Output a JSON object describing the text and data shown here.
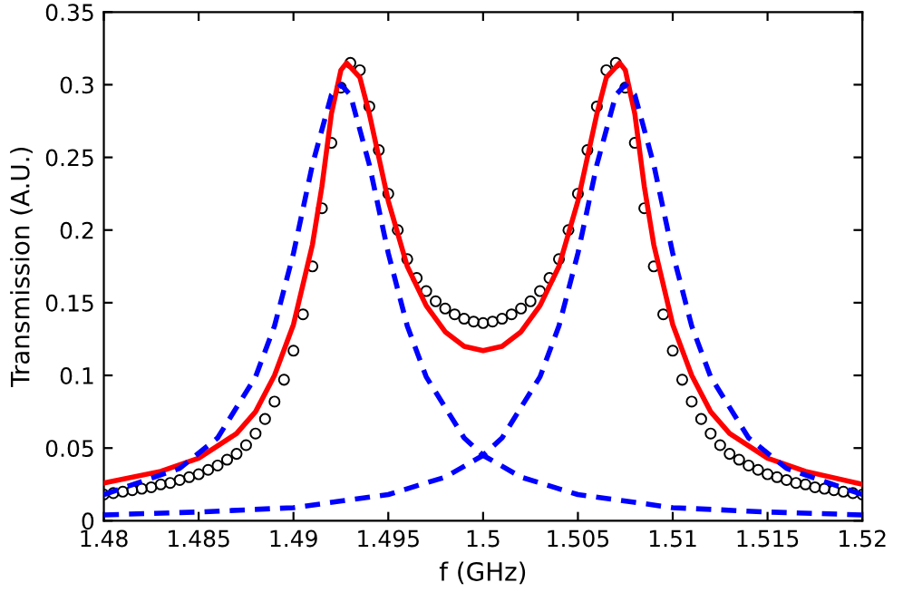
{
  "chart_data": {
    "type": "line",
    "xlabel": "f (GHz)",
    "ylabel": "Transmission (A.U.)",
    "xlim": [
      1.48,
      1.52
    ],
    "ylim": [
      0,
      0.35
    ],
    "xticks": [
      1.48,
      1.485,
      1.49,
      1.495,
      1.5,
      1.505,
      1.51,
      1.515,
      1.52
    ],
    "yticks": [
      0,
      0.05,
      0.1,
      0.15,
      0.2,
      0.25,
      0.3,
      0.35
    ],
    "grid": false,
    "series": [
      {
        "type": "scatter",
        "color": "#000000",
        "marker": "circle",
        "x": [
          1.48,
          1.4805,
          1.481,
          1.4815,
          1.482,
          1.4825,
          1.483,
          1.4835,
          1.484,
          1.4845,
          1.485,
          1.4855,
          1.486,
          1.4865,
          1.487,
          1.4875,
          1.488,
          1.4885,
          1.489,
          1.4895,
          1.49,
          1.4905,
          1.491,
          1.4915,
          1.492,
          1.4925,
          1.493,
          1.4935,
          1.494,
          1.4945,
          1.495,
          1.4955,
          1.496,
          1.4965,
          1.497,
          1.4975,
          1.498,
          1.4985,
          1.499,
          1.4995,
          1.5,
          1.5005,
          1.501,
          1.5015,
          1.502,
          1.5025,
          1.503,
          1.5035,
          1.504,
          1.5045,
          1.505,
          1.5055,
          1.506,
          1.5065,
          1.507,
          1.5075,
          1.508,
          1.5085,
          1.509,
          1.5095,
          1.51,
          1.5105,
          1.511,
          1.5115,
          1.512,
          1.5125,
          1.513,
          1.5135,
          1.514,
          1.5145,
          1.515,
          1.5155,
          1.516,
          1.5165,
          1.517,
          1.5175,
          1.518,
          1.5185,
          1.519,
          1.5195,
          1.52
        ],
        "values": [
          0.018,
          0.019,
          0.02,
          0.021,
          0.022,
          0.023,
          0.025,
          0.026,
          0.028,
          0.03,
          0.032,
          0.035,
          0.038,
          0.042,
          0.046,
          0.052,
          0.06,
          0.07,
          0.082,
          0.097,
          0.117,
          0.142,
          0.175,
          0.215,
          0.26,
          0.298,
          0.315,
          0.31,
          0.285,
          0.255,
          0.225,
          0.2,
          0.18,
          0.167,
          0.158,
          0.151,
          0.146,
          0.142,
          0.139,
          0.137,
          0.136,
          0.137,
          0.139,
          0.142,
          0.146,
          0.151,
          0.158,
          0.167,
          0.18,
          0.2,
          0.225,
          0.255,
          0.285,
          0.31,
          0.315,
          0.298,
          0.26,
          0.215,
          0.175,
          0.142,
          0.117,
          0.097,
          0.082,
          0.07,
          0.06,
          0.052,
          0.046,
          0.042,
          0.038,
          0.035,
          0.032,
          0.03,
          0.028,
          0.026,
          0.025,
          0.023,
          0.022,
          0.021,
          0.02,
          0.019,
          0.018
        ]
      },
      {
        "color": "#ff0000",
        "line_style": "solid",
        "x": [
          1.48,
          1.483,
          1.485,
          1.487,
          1.488,
          1.489,
          1.49,
          1.491,
          1.4915,
          1.492,
          1.4925,
          1.4928,
          1.4935,
          1.494,
          1.495,
          1.496,
          1.497,
          1.498,
          1.499,
          1.5,
          1.501,
          1.502,
          1.503,
          1.504,
          1.505,
          1.506,
          1.5065,
          1.5072,
          1.5075,
          1.508,
          1.5085,
          1.509,
          1.51,
          1.511,
          1.512,
          1.513,
          1.515,
          1.517,
          1.52
        ],
        "values": [
          0.026,
          0.034,
          0.043,
          0.06,
          0.075,
          0.1,
          0.135,
          0.19,
          0.23,
          0.28,
          0.31,
          0.315,
          0.305,
          0.28,
          0.22,
          0.175,
          0.148,
          0.13,
          0.12,
          0.117,
          0.12,
          0.13,
          0.148,
          0.175,
          0.22,
          0.28,
          0.305,
          0.315,
          0.31,
          0.28,
          0.23,
          0.19,
          0.135,
          0.1,
          0.075,
          0.06,
          0.043,
          0.034,
          0.025
        ]
      },
      {
        "color": "#0000ff",
        "line_style": "dashed",
        "x": [
          1.48,
          1.484,
          1.486,
          1.488,
          1.489,
          1.49,
          1.491,
          1.492,
          1.4925,
          1.493,
          1.494,
          1.495,
          1.496,
          1.497,
          1.499,
          1.5,
          1.502,
          1.505,
          1.51,
          1.515,
          1.52
        ],
        "values": [
          0.018,
          0.036,
          0.057,
          0.099,
          0.134,
          0.184,
          0.245,
          0.293,
          0.3,
          0.293,
          0.245,
          0.184,
          0.134,
          0.099,
          0.057,
          0.045,
          0.03,
          0.018,
          0.009,
          0.006,
          0.004
        ]
      },
      {
        "color": "#0000ff",
        "line_style": "dashed",
        "x": [
          1.48,
          1.485,
          1.49,
          1.495,
          1.498,
          1.5,
          1.501,
          1.503,
          1.504,
          1.505,
          1.506,
          1.507,
          1.5075,
          1.508,
          1.509,
          1.51,
          1.511,
          1.512,
          1.514,
          1.516,
          1.52
        ],
        "values": [
          0.004,
          0.006,
          0.009,
          0.018,
          0.03,
          0.045,
          0.057,
          0.099,
          0.134,
          0.184,
          0.245,
          0.293,
          0.3,
          0.293,
          0.245,
          0.184,
          0.134,
          0.099,
          0.057,
          0.036,
          0.018
        ]
      }
    ]
  }
}
